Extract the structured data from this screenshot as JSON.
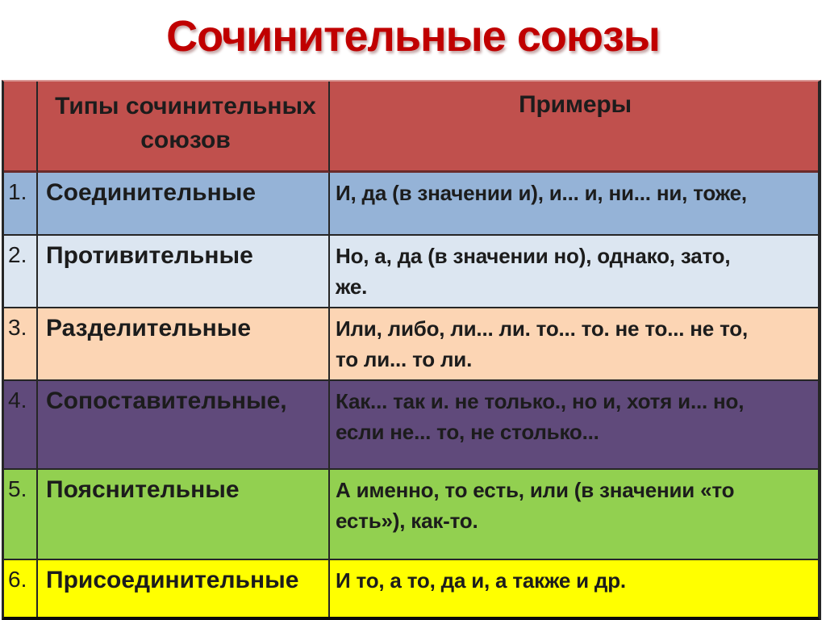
{
  "title": "Сочинительные союзы",
  "title_color": "#c00000",
  "table": {
    "header_bg": "#c0504d",
    "headers": {
      "types": "Типы сочинительных\nсоюзов",
      "examples": "Примеры"
    },
    "rows": [
      {
        "num": "1.",
        "type": "Соединительные",
        "examples": "И, да (в значении и), и... и, ни... ни, тоже,",
        "bg": "#95b3d7"
      },
      {
        "num": "2.",
        "type": "Противительные",
        "examples": "Но, а, да (в значении но), однако, зато,\nже.",
        "bg": "#dce6f1"
      },
      {
        "num": "3.",
        "type": "Разделительные",
        "examples": "Или, либо, ли... ли. то... то. не то... не то,\nто ли... то ли.",
        "bg": "#fcd5b4"
      },
      {
        "num": "4.",
        "type": "Сопоставительные,",
        "examples": "Как... так и. не только., но и, хотя и... но,\nесли не... то, не столько...",
        "bg": "#604a7b"
      },
      {
        "num": "5.",
        "type": "Пояснительные",
        "examples": "А именно, то есть, или (в значении «то\nесть»), как-то.",
        "bg": "#92d050"
      },
      {
        "num": "6.",
        "type": "Присоединительные",
        "examples": "И то, а то, да и, а также и др.",
        "bg": "#ffff00"
      }
    ]
  }
}
